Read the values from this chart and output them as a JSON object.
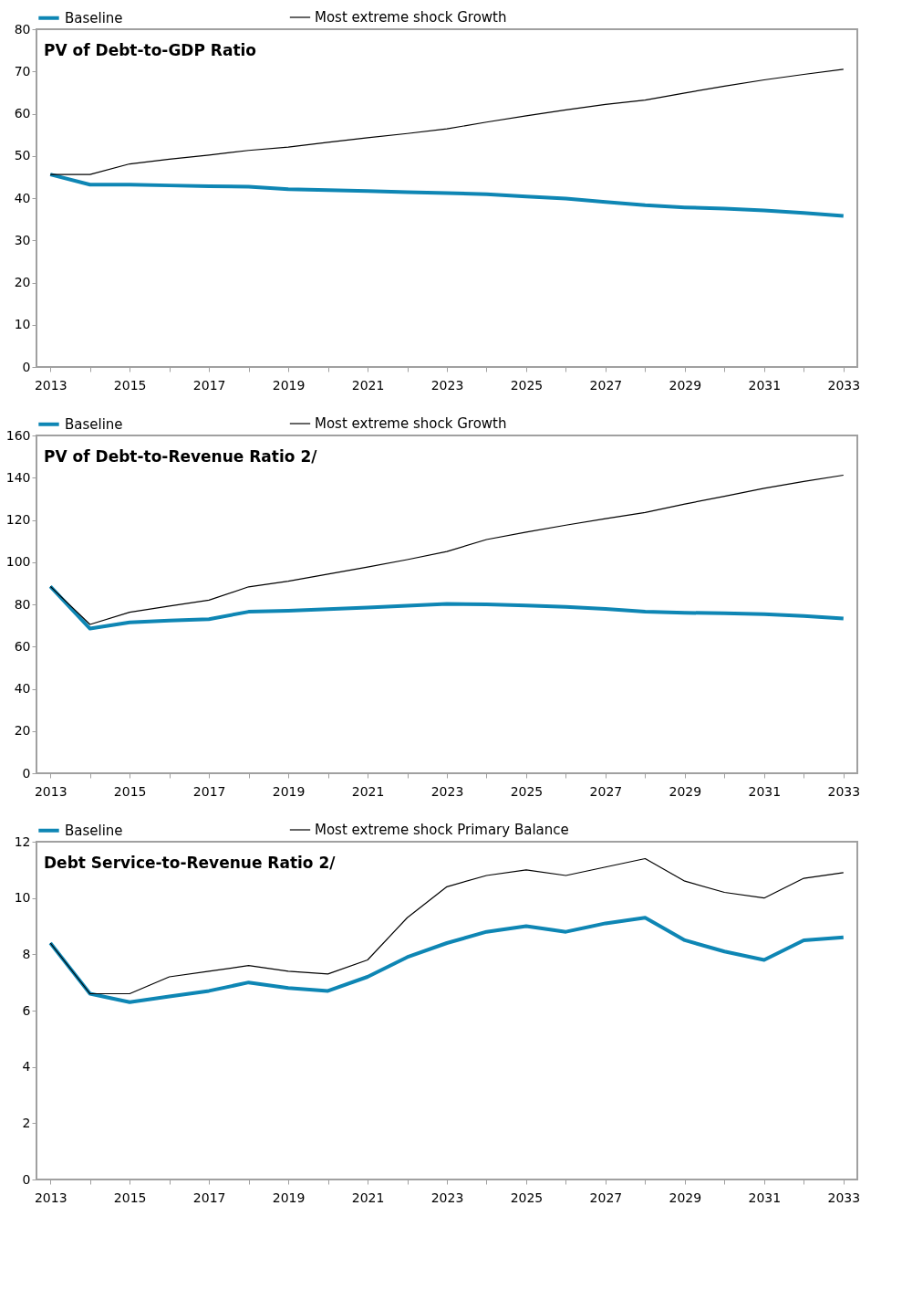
{
  "chart_data": [
    {
      "type": "line",
      "title": "PV of Debt-to-GDP Ratio",
      "categories": [
        "2013",
        null,
        "2015",
        null,
        "2017",
        null,
        "2019",
        null,
        "2021",
        null,
        "2023",
        null,
        "2025",
        null,
        "2027",
        null,
        "2029",
        null,
        "2031",
        null,
        "2033"
      ],
      "ylim": [
        0,
        80
      ],
      "yticks": [
        0,
        10,
        20,
        30,
        40,
        50,
        60,
        70,
        80
      ],
      "grid": false,
      "legend": "top",
      "marker": "none",
      "line_style": "solid",
      "series": [
        {
          "name": "Baseline",
          "color": "#0e86b4",
          "values": [
            45.6,
            43.2,
            43.2,
            43.0,
            42.8,
            42.7,
            42.1,
            41.9,
            41.7,
            41.4,
            41.2,
            40.9,
            40.4,
            39.9,
            39.1,
            38.3,
            37.8,
            37.5,
            37.1,
            36.5,
            35.8
          ]
        },
        {
          "name": "Most extreme shock Growth",
          "color": "#000000",
          "values": [
            45.6,
            45.6,
            48.1,
            49.2,
            50.2,
            51.3,
            52.1,
            53.2,
            54.3,
            55.3,
            56.4,
            58.0,
            59.5,
            60.9,
            62.2,
            63.2,
            64.9,
            66.5,
            68.0,
            69.3,
            70.5
          ]
        }
      ]
    },
    {
      "type": "line",
      "title": "PV of Debt-to-Revenue Ratio 2/",
      "categories": [
        "2013",
        null,
        "2015",
        null,
        "2017",
        null,
        "2019",
        null,
        "2021",
        null,
        "2023",
        null,
        "2025",
        null,
        "2027",
        null,
        "2029",
        null,
        "2031",
        null,
        "2033"
      ],
      "ylim": [
        0,
        160
      ],
      "yticks": [
        0,
        20,
        40,
        60,
        80,
        100,
        120,
        140,
        160
      ],
      "grid": false,
      "legend": "top",
      "marker": "none",
      "line_style": "solid",
      "series": [
        {
          "name": "Baseline",
          "color": "#0e86b4",
          "values": [
            88.5,
            68.5,
            71.5,
            72.3,
            73.0,
            76.5,
            77.0,
            77.7,
            78.5,
            79.3,
            80.2,
            80.0,
            79.5,
            78.8,
            77.8,
            76.5,
            76.0,
            75.8,
            75.3,
            74.5,
            73.3
          ]
        },
        {
          "name": "Most extreme shock Growth",
          "color": "#000000",
          "values": [
            88.5,
            70.5,
            76.3,
            79.2,
            82.0,
            88.3,
            91.0,
            94.3,
            97.7,
            101.2,
            105.0,
            110.7,
            114.2,
            117.5,
            120.6,
            123.5,
            127.5,
            131.2,
            135.0,
            138.2,
            141.2
          ]
        }
      ]
    },
    {
      "type": "line",
      "title": "Debt Service-to-Revenue Ratio 2/",
      "categories": [
        "2013",
        null,
        "2015",
        null,
        "2017",
        null,
        "2019",
        null,
        "2021",
        null,
        "2023",
        null,
        "2025",
        null,
        "2027",
        null,
        "2029",
        null,
        "2031",
        null,
        "2033"
      ],
      "ylim": [
        0,
        12
      ],
      "yticks": [
        0,
        2,
        4,
        6,
        8,
        10,
        12
      ],
      "grid": false,
      "legend": "top",
      "marker": "none",
      "line_style": "solid",
      "series": [
        {
          "name": "Baseline",
          "color": "#0e86b4",
          "values": [
            8.4,
            6.6,
            6.3,
            6.5,
            6.7,
            7.0,
            6.8,
            6.7,
            7.2,
            7.9,
            8.4,
            8.8,
            9.0,
            8.8,
            9.1,
            9.3,
            8.5,
            8.1,
            7.8,
            8.5,
            8.6
          ]
        },
        {
          "name": "Most extreme shock Primary Balance",
          "color": "#000000",
          "values": [
            8.4,
            6.6,
            6.6,
            7.2,
            7.4,
            7.6,
            7.4,
            7.3,
            7.8,
            9.3,
            10.4,
            10.8,
            11.0,
            10.8,
            11.1,
            11.4,
            10.6,
            10.2,
            10.0,
            10.7,
            10.9
          ]
        }
      ]
    }
  ]
}
